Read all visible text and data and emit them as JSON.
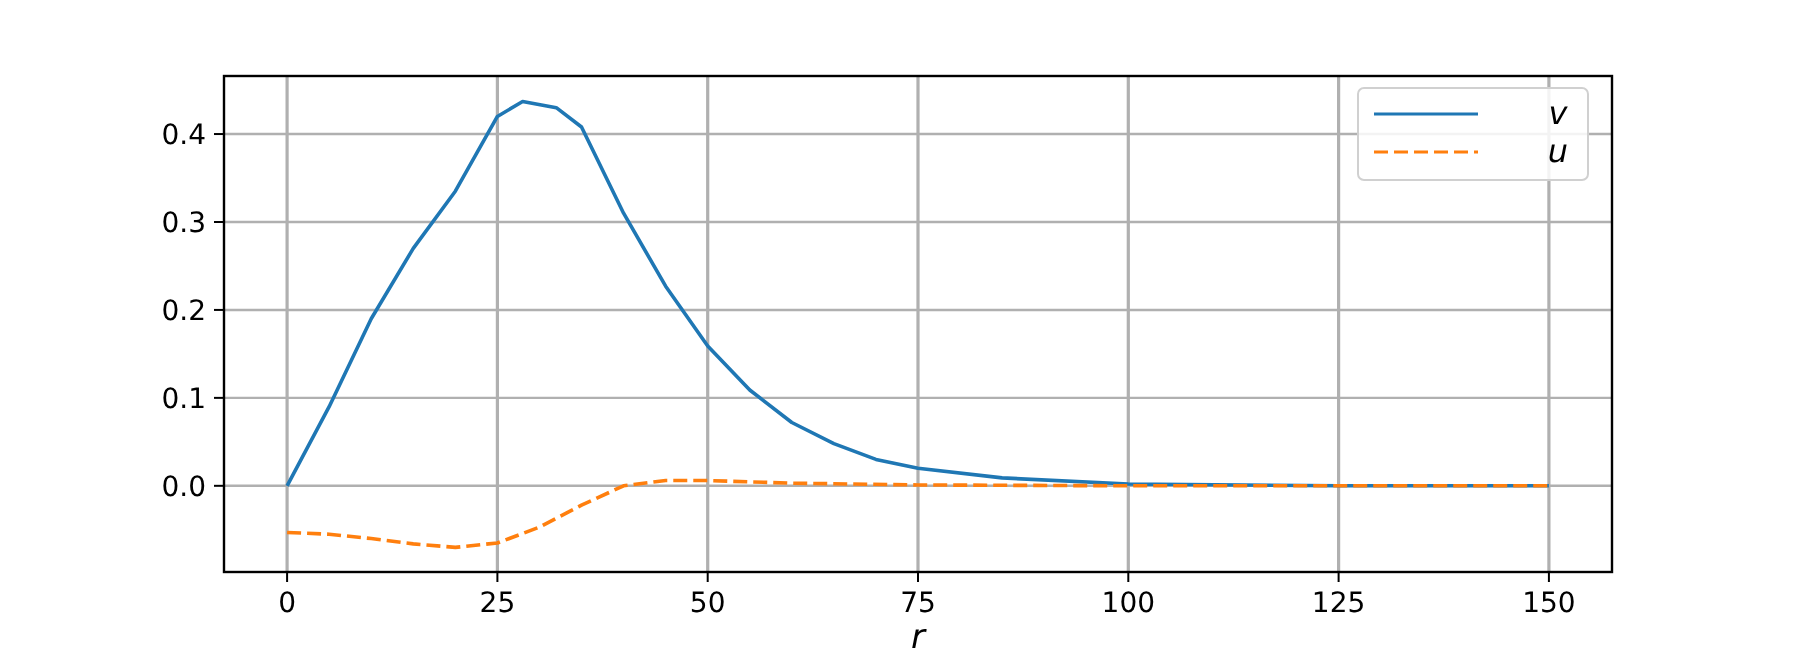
{
  "chart_data": {
    "type": "line",
    "xlabel": "r",
    "xlim": [
      -7.5,
      157.5
    ],
    "ylim": [
      -0.098,
      0.466
    ],
    "xticks": [
      0,
      25,
      50,
      75,
      100,
      125,
      150
    ],
    "yticks": [
      {
        "value": 0,
        "label": "0.0"
      },
      {
        "value": 0.1,
        "label": "0.1"
      },
      {
        "value": 0.2,
        "label": "0.2"
      },
      {
        "value": 0.3,
        "label": "0.3"
      },
      {
        "value": 0.4,
        "label": "0.4"
      }
    ],
    "grid": true,
    "legend": "top right",
    "series": [
      {
        "name": "v",
        "color": "#1f77b4",
        "line_style": "solid",
        "x": [
          0,
          5,
          10,
          15,
          20,
          25,
          28,
          32,
          35,
          40,
          45,
          50,
          55,
          60,
          65,
          70,
          75,
          85,
          100,
          125,
          150
        ],
        "values": [
          0,
          0.09,
          0.19,
          0.27,
          0.335,
          0.42,
          0.437,
          0.43,
          0.408,
          0.31,
          0.227,
          0.159,
          0.109,
          0.072,
          0.048,
          0.03,
          0.02,
          0.009,
          0.002,
          0,
          0
        ]
      },
      {
        "name": "u",
        "color": "#ff7f0e",
        "line_style": "dashed",
        "x": [
          0,
          5,
          10,
          15,
          20,
          25,
          30,
          35,
          40,
          45,
          50,
          60,
          75,
          100,
          125,
          150
        ],
        "values": [
          -0.053,
          -0.055,
          -0.06,
          -0.066,
          -0.07,
          -0.065,
          -0.047,
          -0.022,
          0,
          0.006,
          0.006,
          0.003,
          0.001,
          0,
          0,
          0
        ]
      }
    ]
  }
}
